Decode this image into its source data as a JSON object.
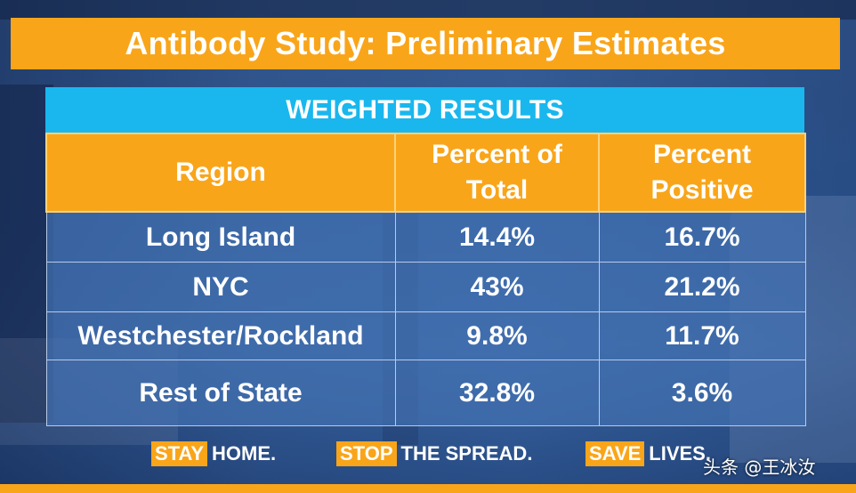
{
  "title": "Antibody Study: Preliminary Estimates",
  "chart_data": {
    "type": "table",
    "caption": "WEIGHTED RESULTS",
    "columns": [
      "Region",
      "Percent of\nTotal",
      "Percent\nPositive"
    ],
    "rows": [
      [
        "Long Island",
        "14.4%",
        "16.7%"
      ],
      [
        "NYC",
        "43%",
        "21.2%"
      ],
      [
        "Westchester/Rockland",
        "9.8%",
        "11.7%"
      ],
      [
        "Rest of State",
        "32.8%",
        "3.6%"
      ]
    ],
    "percent_of_total": [
      14.4,
      43,
      9.8,
      32.8
    ],
    "percent_positive": [
      16.7,
      21.2,
      11.7,
      3.6
    ]
  },
  "slogans": [
    {
      "highlight": "STAY",
      "rest": "HOME."
    },
    {
      "highlight": "STOP",
      "rest": "THE SPREAD."
    },
    {
      "highlight": "SAVE",
      "rest": "LIVES."
    }
  ],
  "watermark": "头条 @王冰汝",
  "colors": {
    "accent_orange": "#f9a51a",
    "caption_blue": "#19b7ee",
    "background_blue": "#2c4f86"
  }
}
